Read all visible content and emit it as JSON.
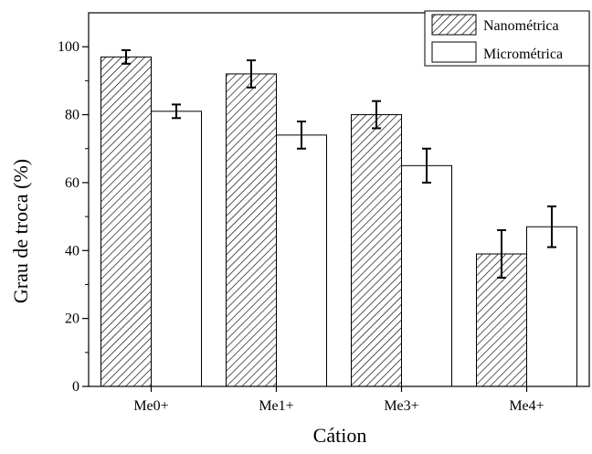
{
  "chart_data": {
    "type": "bar",
    "title": "",
    "xlabel": "Cátion",
    "ylabel": "Grau de troca (%)",
    "categories": [
      "Me0+",
      "Me1+",
      "Me3+",
      "Me4+"
    ],
    "ylim": [
      0,
      110
    ],
    "yticks": [
      0,
      20,
      40,
      60,
      80,
      100
    ],
    "grid": false,
    "legend_position": "top-right",
    "series": [
      {
        "name": "Nanométrica",
        "fill": "hatched",
        "values": [
          97,
          92,
          80,
          39
        ],
        "errors": [
          2,
          4,
          4,
          7
        ]
      },
      {
        "name": "Micrométrica",
        "fill": "white",
        "values": [
          81,
          74,
          65,
          47
        ],
        "errors": [
          2,
          4,
          5,
          6
        ]
      }
    ]
  }
}
